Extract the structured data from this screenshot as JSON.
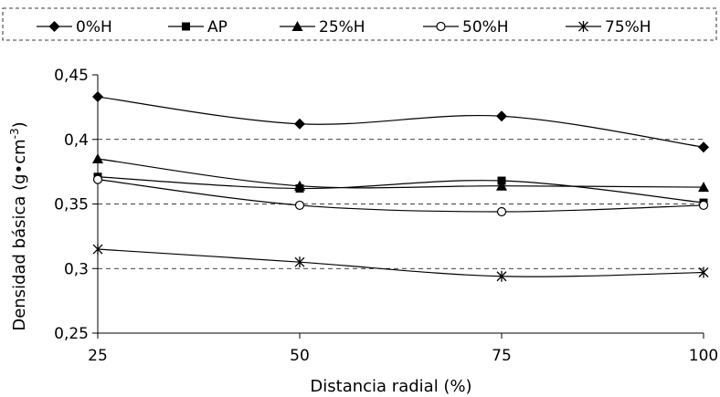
{
  "chart_data": {
    "type": "line",
    "title": "",
    "xlabel": "Distancia radial (%)",
    "ylabel_main": "Densidad básica (g•cm",
    "ylabel_sup": "-3",
    "ylabel_close": ")",
    "x": [
      25,
      50,
      75,
      100
    ],
    "x_tick_labels": [
      "25",
      "50",
      "75",
      "100"
    ],
    "ylim": [
      0.25,
      0.45
    ],
    "y_ticks": [
      0.25,
      0.3,
      0.35,
      0.4,
      0.45
    ],
    "y_tick_labels": [
      "0,25",
      "0,3",
      "0,35",
      "0,4",
      "0,45"
    ],
    "dashed_gridlines": [
      0.3,
      0.35,
      0.4
    ],
    "legend_placement": "top",
    "line_color": "#000000",
    "series": [
      {
        "name": "0%H",
        "marker": "diamond",
        "values": [
          0.433,
          0.412,
          0.418,
          0.394
        ]
      },
      {
        "name": "AP",
        "marker": "square",
        "values": [
          0.371,
          0.362,
          0.368,
          0.351
        ]
      },
      {
        "name": "25%H",
        "marker": "triangle",
        "values": [
          0.385,
          0.364,
          0.364,
          0.363
        ]
      },
      {
        "name": "50%H",
        "marker": "circle-open",
        "values": [
          0.369,
          0.349,
          0.344,
          0.349
        ]
      },
      {
        "name": "75%H",
        "marker": "asterisk",
        "values": [
          0.315,
          0.305,
          0.294,
          0.297
        ]
      }
    ]
  }
}
